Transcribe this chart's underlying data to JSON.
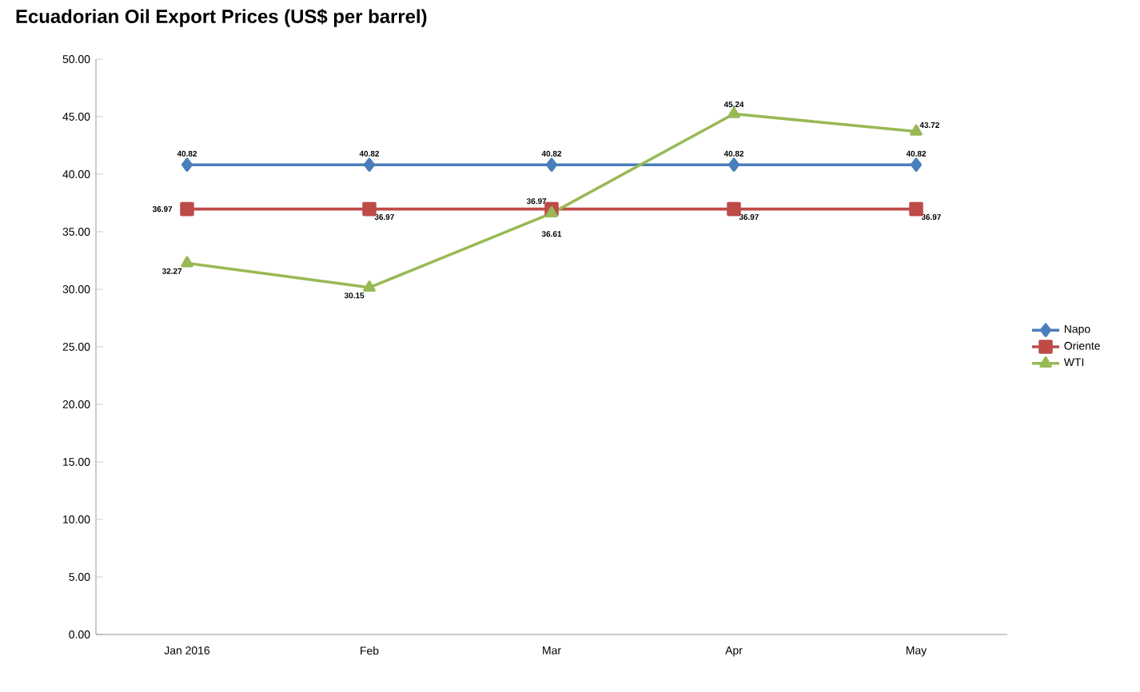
{
  "chart_data": {
    "type": "line",
    "title": "Ecuadorian Oil Export Prices (US$ per barrel)",
    "categories": [
      "Jan 2016",
      "Feb",
      "Mar",
      "Apr",
      "May"
    ],
    "series": [
      {
        "name": "Napo",
        "color": "#4a7ebb",
        "marker": "diamond",
        "values": [
          40.82,
          40.82,
          40.82,
          40.82,
          40.82
        ]
      },
      {
        "name": "Oriente",
        "color": "#be4b48",
        "marker": "square",
        "values": [
          36.97,
          36.97,
          36.97,
          36.97,
          36.97
        ]
      },
      {
        "name": "WTI",
        "color": "#98b954",
        "marker": "triangle",
        "values": [
          32.27,
          30.15,
          36.61,
          45.24,
          43.72
        ]
      }
    ],
    "ylim": [
      0,
      50
    ],
    "yticks": [
      {
        "value": 0,
        "label": "0.00"
      },
      {
        "value": 5,
        "label": "5.00"
      },
      {
        "value": 10,
        "label": "10.00"
      },
      {
        "value": 15,
        "label": "15.00"
      },
      {
        "value": 20,
        "label": "20.00"
      },
      {
        "value": 25,
        "label": "25.00"
      },
      {
        "value": 30,
        "label": "30.00"
      },
      {
        "value": 35,
        "label": "35.00"
      },
      {
        "value": 40,
        "label": "40.00"
      },
      {
        "value": 45,
        "label": "45.00"
      },
      {
        "value": 50,
        "label": "50.00"
      }
    ],
    "data_labels": true,
    "legend": "right",
    "grid": false,
    "line_style": "solid"
  }
}
